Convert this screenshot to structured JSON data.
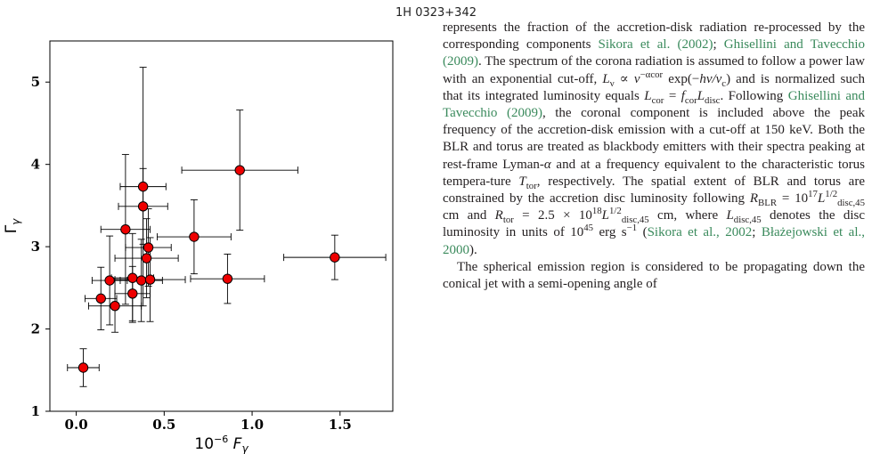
{
  "header": {
    "title": "1H 0323+342"
  },
  "chart_data": {
    "type": "scatter",
    "title": "1H 0323+342",
    "xlabel": "10^-6 F_γ",
    "ylabel": "Γ_γ",
    "xlim": [
      -0.15,
      1.8
    ],
    "ylim": [
      1,
      5.5
    ],
    "xticks": [
      "0.0",
      "0.5",
      "1.0",
      "1.5"
    ],
    "yticks": [
      "1",
      "2",
      "3",
      "4",
      "5"
    ],
    "grid": false,
    "marker_color": "#ee0000",
    "points": [
      {
        "x": 0.04,
        "xerr": 0.09,
        "y": 1.53,
        "yerr": 0.23
      },
      {
        "x": 0.14,
        "xerr": 0.09,
        "y": 2.37,
        "yerr": 0.38
      },
      {
        "x": 0.19,
        "xerr": 0.1,
        "y": 2.59,
        "yerr": 0.54
      },
      {
        "x": 0.22,
        "xerr": 0.15,
        "y": 2.28,
        "yerr": 0.32
      },
      {
        "x": 0.28,
        "xerr": 0.14,
        "y": 3.21,
        "yerr": 0.91
      },
      {
        "x": 0.32,
        "xerr": 0.12,
        "y": 2.62,
        "yerr": 0.54
      },
      {
        "x": 0.32,
        "xerr": 0.1,
        "y": 2.43,
        "yerr": 0.33
      },
      {
        "x": 0.37,
        "xerr": 0.12,
        "y": 2.59,
        "yerr": 0.5
      },
      {
        "x": 0.38,
        "xerr": 0.13,
        "y": 3.73,
        "yerr": 1.45
      },
      {
        "x": 0.38,
        "xerr": 0.14,
        "y": 3.49,
        "yerr": 0.46
      },
      {
        "x": 0.4,
        "xerr": 0.18,
        "y": 2.86,
        "yerr": 0.48
      },
      {
        "x": 0.41,
        "xerr": 0.13,
        "y": 2.99,
        "yerr": 0.47
      },
      {
        "x": 0.42,
        "xerr": 0.2,
        "y": 2.6,
        "yerr": 0.51
      },
      {
        "x": 0.67,
        "xerr": 0.21,
        "y": 3.12,
        "yerr": 0.45
      },
      {
        "x": 0.86,
        "xerr": 0.21,
        "y": 2.61,
        "yerr": 0.3
      },
      {
        "x": 0.93,
        "xerr": 0.33,
        "y": 3.93,
        "yerr": 0.73
      },
      {
        "x": 1.47,
        "xerr": 0.29,
        "y": 2.87,
        "yerr": 0.27
      }
    ]
  },
  "text": {
    "p1": [
      {
        "t": "represents the fraction of the accretion-disk radiation re-"
      },
      {
        "t": "processed by the corresponding components "
      },
      {
        "t": "Sikora et al.",
        "c": 1
      },
      {
        "t": " "
      },
      {
        "t": "(2002)",
        "c": 1
      },
      {
        "t": "; "
      },
      {
        "t": "Ghisellini and Tavecchio",
        "c": 1
      },
      {
        "t": " "
      },
      {
        "t": "(2009)",
        "c": 1
      },
      {
        "t": ". The spectrum of the corona radiation is assumed to follow a power law with an exponential cut-off, "
      },
      {
        "t": "L",
        "i": 1
      },
      {
        "sub": "ν"
      },
      {
        "t": " ∝ "
      },
      {
        "t": "ν",
        "i": 1
      },
      {
        "sup": "−α_cor"
      },
      {
        "t": " exp(−"
      },
      {
        "t": "hν/ν",
        "i": 1
      },
      {
        "sub": "c"
      },
      {
        "t": ") and is normalized such that its integrated luminosity equals "
      },
      {
        "t": "L",
        "i": 1
      },
      {
        "sub": "cor"
      },
      {
        "t": " = "
      },
      {
        "t": "f",
        "i": 1
      },
      {
        "sub": "cor"
      },
      {
        "t": "L",
        "i": 1
      },
      {
        "sub": "disc"
      },
      {
        "t": ". Following "
      },
      {
        "t": "Ghisellini and Tavecchio",
        "c": 1
      },
      {
        "t": " "
      },
      {
        "t": "(2009)",
        "c": 1
      },
      {
        "t": ", the coronal component is included above the peak frequency of the accretion-disk emission with a cut-off at 150 keV. Both the BLR and torus are treated as blackbody emitters with their spectra peaking at rest-frame Lyman-"
      },
      {
        "t": "α",
        "i": 1
      },
      {
        "t": " and at a frequency equivalent to the characteristic torus tempera-ture "
      },
      {
        "t": "T",
        "i": 1
      },
      {
        "sub": "tor"
      },
      {
        "t": ", respectively. The spatial extent of BLR and torus are constrained by the accretion disc luminosity following "
      },
      {
        "t": "R",
        "i": 1
      },
      {
        "sub": "BLR"
      },
      {
        "t": " = 10"
      },
      {
        "sup": "17"
      },
      {
        "t": "L",
        "i": 1
      },
      {
        "sup": "1/2"
      },
      {
        "sub": "disc,45"
      },
      {
        "t": " cm and "
      },
      {
        "t": "R",
        "i": 1
      },
      {
        "sub": "tor"
      },
      {
        "t": " = 2.5 × 10"
      },
      {
        "sup": "18"
      },
      {
        "t": "L",
        "i": 1
      },
      {
        "sup": "1/2"
      },
      {
        "sub": "disc,45"
      },
      {
        "t": " cm, where "
      },
      {
        "t": "L",
        "i": 1
      },
      {
        "sub": "disc,45"
      },
      {
        "t": " denotes the disc luminosity in units of 10"
      },
      {
        "sup": "45"
      },
      {
        "t": " erg s"
      },
      {
        "sup": "−1"
      },
      {
        "t": " ("
      },
      {
        "t": "Sikora et al., 2002",
        "c": 1
      },
      {
        "t": "; "
      },
      {
        "t": "Błażejowski et al., 2000",
        "c": 1
      },
      {
        "t": ")."
      }
    ],
    "p2": "The spherical emission region is considered to be propagating down the conical jet with a semi-opening angle of"
  }
}
